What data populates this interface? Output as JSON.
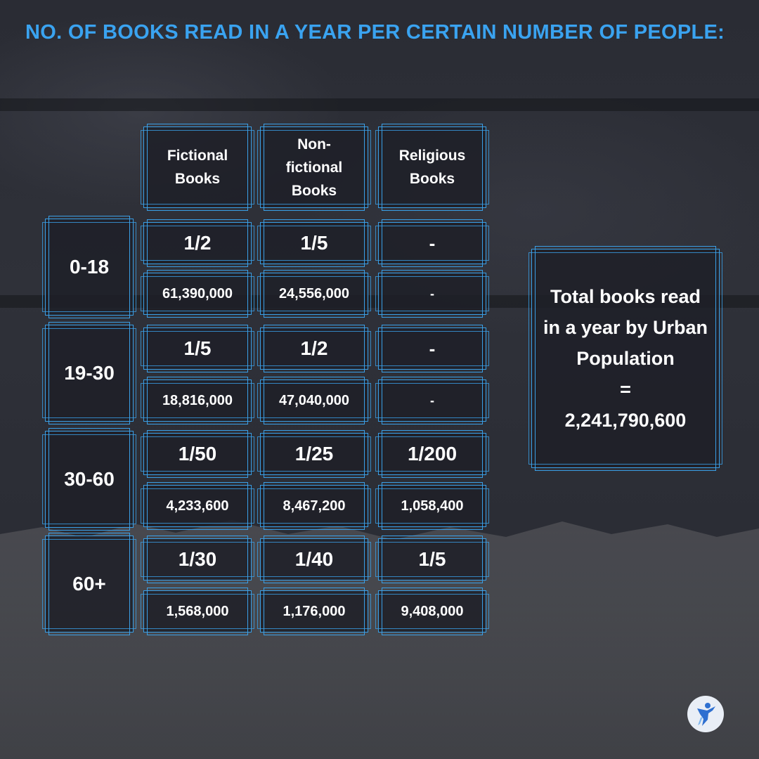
{
  "title": "NO. OF BOOKS READ IN A YEAR PER CERTAIN NUMBER OF PEOPLE:",
  "columns": [
    {
      "lines": [
        "Fictional",
        "Books"
      ]
    },
    {
      "lines": [
        "Non-",
        "fictional",
        "Books"
      ]
    },
    {
      "lines": [
        "Religious",
        "Books"
      ]
    }
  ],
  "groups": [
    {
      "age": "0-18",
      "ratios": [
        "1/2",
        "1/5",
        "-"
      ],
      "counts": [
        "61,390,000",
        "24,556,000",
        "-"
      ]
    },
    {
      "age": "19-30",
      "ratios": [
        "1/5",
        "1/2",
        "-"
      ],
      "counts": [
        "18,816,000",
        "47,040,000",
        "-"
      ]
    },
    {
      "age": "30-60",
      "ratios": [
        "1/50",
        "1/25",
        "1/200"
      ],
      "counts": [
        "4,233,600",
        "8,467,200",
        "1,058,400"
      ]
    },
    {
      "age": "60+",
      "ratios": [
        "1/30",
        "1/40",
        "1/5"
      ],
      "counts": [
        "1,568,000",
        "1,176,000",
        "9,408,000"
      ]
    }
  ],
  "total": {
    "lines": [
      "Total books read",
      "in a year by Urban",
      "Population",
      "=",
      "2,241,790,600"
    ]
  },
  "colors": {
    "accent": "#3aa3f0",
    "box_border": "#3a9fe6",
    "background": "#2b2d35",
    "text": "#ffffff"
  },
  "icons": {
    "logo": "person-figure-logo-icon"
  }
}
